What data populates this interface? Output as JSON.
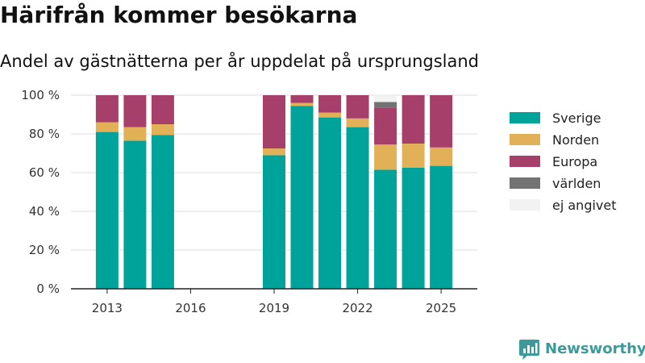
{
  "title": "Härifrån kommer besökarna",
  "subtitle": "Andel av gästnätterna per år uppdelat på ursprungsland",
  "brand": "Newsworthy",
  "chart_data": {
    "type": "bar",
    "stacked": true,
    "title": "Härifrån kommer besökarna",
    "subtitle": "Andel av gästnätterna per år uppdelat på ursprungsland",
    "xlabel": "",
    "ylabel": "",
    "x": [
      2013,
      2014,
      2015,
      2019,
      2020,
      2021,
      2022,
      2023,
      2024,
      2025
    ],
    "xlim": [
      2011.7,
      2026.3
    ],
    "xticks": [
      2013,
      2016,
      2019,
      2022,
      2025
    ],
    "xtick_labels": [
      "2013",
      "2016",
      "2019",
      "2022",
      "2025"
    ],
    "ylim": [
      0,
      100
    ],
    "yticks": [
      0,
      20,
      40,
      60,
      80,
      100
    ],
    "ytick_labels": [
      "0 %",
      "20 %",
      "40 %",
      "60 %",
      "80 %",
      "100 %"
    ],
    "grid": "horizontal",
    "legend_position": "right",
    "series": [
      {
        "name": "Sverige",
        "color": "#00a39a",
        "values": [
          81,
          76.5,
          79.5,
          69,
          94.5,
          88.5,
          83.5,
          61.5,
          62.5,
          63.5
        ]
      },
      {
        "name": "Norden",
        "color": "#e2b157",
        "values": [
          5,
          7,
          5.5,
          3.5,
          1.5,
          2.5,
          4.5,
          13,
          12.5,
          9.5
        ]
      },
      {
        "name": "Europa",
        "color": "#a6406a",
        "values": [
          14,
          16.5,
          15,
          27.5,
          4,
          9,
          12,
          19,
          25,
          27
        ]
      },
      {
        "name": "världen",
        "color": "#737373",
        "values": [
          0,
          0,
          0,
          0,
          0,
          0,
          0,
          3,
          0,
          0
        ]
      },
      {
        "name": "ej angivet",
        "color": "#f2f2f2",
        "values": [
          0,
          0,
          0,
          0,
          0,
          0,
          0,
          3.5,
          0,
          0
        ]
      }
    ]
  }
}
